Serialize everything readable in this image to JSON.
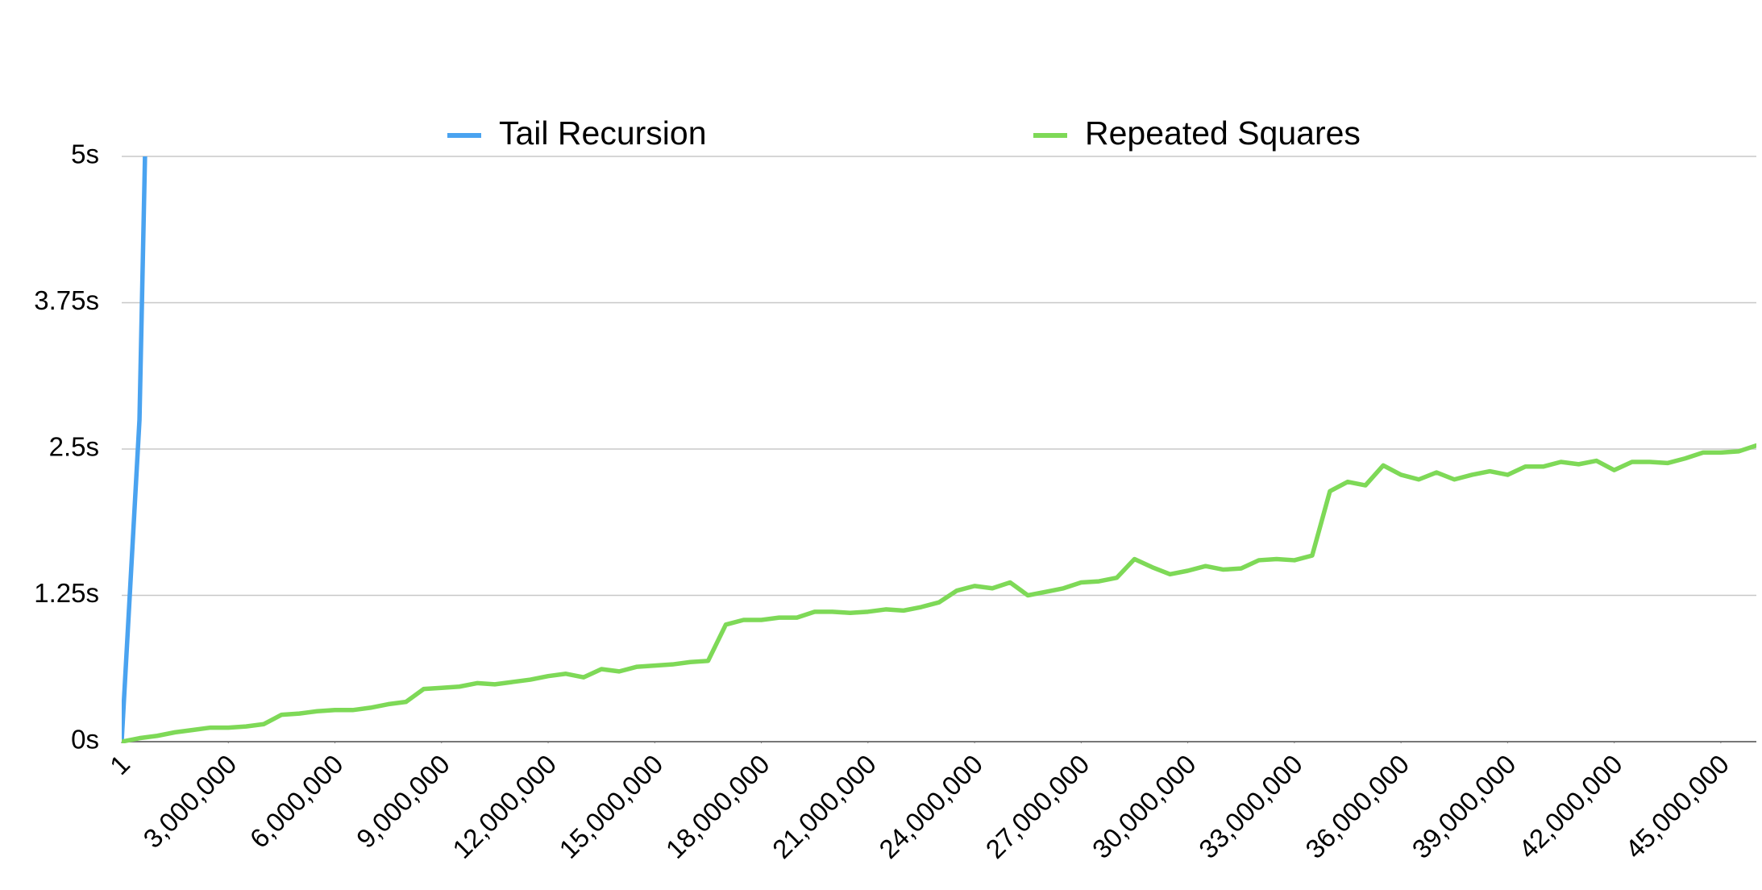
{
  "chart_data": {
    "type": "line",
    "x": [
      1,
      500000,
      1000000,
      1500000,
      2000000,
      2500000,
      3000000,
      3500000,
      4000000,
      4500000,
      5000000,
      5500000,
      6000000,
      6500000,
      7000000,
      7500000,
      8000000,
      8500000,
      9000000,
      9500000,
      10000000,
      10500000,
      11000000,
      11500000,
      12000000,
      12500000,
      13000000,
      13500000,
      14000000,
      14500000,
      15000000,
      15500000,
      16000000,
      16500000,
      17000000,
      17500000,
      18000000,
      18500000,
      19000000,
      19500000,
      20000000,
      20500000,
      21000000,
      21500000,
      22000000,
      22500000,
      23000000,
      23500000,
      24000000,
      24500000,
      25000000,
      25500000,
      26000000,
      26500000,
      27000000,
      27500000,
      28000000,
      28500000,
      29000000,
      29500000,
      30000000,
      30500000,
      31000000,
      31500000,
      32000000,
      32500000,
      33000000,
      33500000,
      34000000,
      34500000,
      35000000,
      35500000,
      36000000,
      36500000,
      37000000,
      37500000,
      38000000,
      38500000,
      39000000,
      39500000,
      40000000,
      40500000,
      41000000,
      41500000,
      42000000,
      42500000,
      43000000,
      43500000,
      44000000,
      44500000,
      45000000,
      45500000,
      46000000
    ],
    "series": [
      {
        "name": "Tail Recursion",
        "color": "#4aa3f0",
        "values": [
          0.01,
          2.75,
          10,
          null,
          null,
          null,
          null,
          null,
          null,
          null,
          null,
          null,
          null,
          null,
          null,
          null,
          null,
          null,
          null,
          null,
          null,
          null,
          null,
          null,
          null,
          null,
          null,
          null,
          null,
          null,
          null,
          null,
          null,
          null,
          null,
          null,
          null,
          null,
          null,
          null,
          null,
          null,
          null,
          null,
          null,
          null,
          null,
          null,
          null,
          null,
          null,
          null,
          null,
          null,
          null,
          null,
          null,
          null,
          null,
          null,
          null,
          null,
          null,
          null,
          null,
          null,
          null,
          null,
          null,
          null,
          null,
          null,
          null,
          null,
          null,
          null,
          null,
          null,
          null,
          null,
          null,
          null,
          null,
          null,
          null,
          null,
          null,
          null,
          null,
          null,
          null,
          null,
          null
        ]
      },
      {
        "name": "Repeated Squares",
        "color": "#7ed957",
        "values": [
          0,
          0.03,
          0.05,
          0.08,
          0.1,
          0.12,
          0.12,
          0.13,
          0.15,
          0.23,
          0.24,
          0.26,
          0.27,
          0.27,
          0.29,
          0.32,
          0.34,
          0.45,
          0.46,
          0.47,
          0.5,
          0.49,
          0.51,
          0.53,
          0.56,
          0.58,
          0.55,
          0.62,
          0.6,
          0.64,
          0.65,
          0.66,
          0.68,
          0.69,
          1.0,
          1.04,
          1.04,
          1.06,
          1.06,
          1.11,
          1.11,
          1.1,
          1.11,
          1.13,
          1.12,
          1.15,
          1.19,
          1.29,
          1.33,
          1.31,
          1.36,
          1.25,
          1.28,
          1.31,
          1.36,
          1.37,
          1.4,
          1.56,
          1.49,
          1.43,
          1.46,
          1.5,
          1.47,
          1.48,
          1.55,
          1.56,
          1.55,
          1.59,
          2.14,
          2.22,
          2.19,
          2.36,
          2.28,
          2.24,
          2.3,
          2.24,
          2.28,
          2.31,
          2.28,
          2.35,
          2.35,
          2.39,
          2.37,
          2.4,
          2.32,
          2.39,
          2.39,
          2.38,
          2.42,
          2.47,
          2.47,
          2.48,
          2.53
        ]
      }
    ],
    "xlim": [
      1,
      46000000
    ],
    "xticks": [
      1,
      {
        "value": 3000000,
        "label": "3,000,000"
      },
      {
        "value": 6000000,
        "label": "6,000,000"
      },
      {
        "value": 9000000,
        "label": "9,000,000"
      },
      {
        "value": 12000000,
        "label": "12,000,000"
      },
      {
        "value": 15000000,
        "label": "15,000,000"
      },
      {
        "value": 18000000,
        "label": "18,000,000"
      },
      {
        "value": 21000000,
        "label": "21,000,000"
      },
      {
        "value": 24000000,
        "label": "24,000,000"
      },
      {
        "value": 27000000,
        "label": "27,000,000"
      },
      {
        "value": 30000000,
        "label": "30,000,000"
      },
      {
        "value": 33000000,
        "label": "33,000,000"
      },
      {
        "value": 36000000,
        "label": "36,000,000"
      },
      {
        "value": 39000000,
        "label": "39,000,000"
      },
      {
        "value": 42000000,
        "label": "42,000,000"
      },
      {
        "value": 45000000,
        "label": "45,000,000"
      }
    ],
    "ylim": [
      0,
      5
    ],
    "yticks": [
      {
        "value": 0,
        "label": "0s"
      },
      {
        "value": 1.25,
        "label": "1.25s"
      },
      {
        "value": 2.5,
        "label": "2.5s"
      },
      {
        "value": 3.75,
        "label": "3.75s"
      },
      {
        "value": 5,
        "label": "5s"
      }
    ],
    "grid": true,
    "legend": "top"
  }
}
